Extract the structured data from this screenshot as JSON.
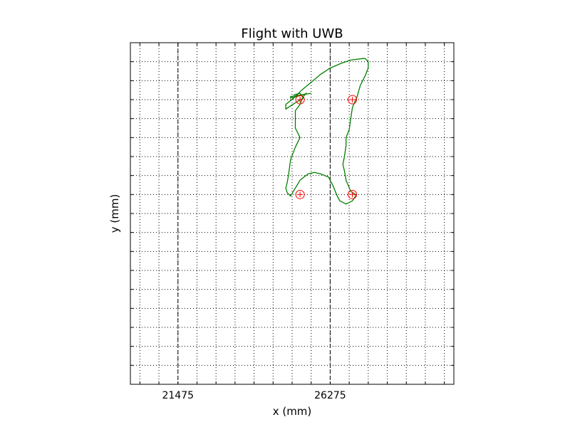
{
  "chart_data": {
    "type": "line",
    "title": "Flight with UWB",
    "xlabel": "x (mm)",
    "ylabel": "y (mm)",
    "xlim": [
      19975,
      30175
    ],
    "ylim": [
      -6000,
      4800
    ],
    "grid": true,
    "x_ticks": [
      {
        "value": 21475,
        "label": "21475"
      },
      {
        "value": 26275,
        "label": "26275"
      }
    ],
    "x_minor_grid": [
      20275,
      20875,
      21475,
      22075,
      22675,
      23275,
      23875,
      24475,
      25075,
      25675,
      26275,
      26875,
      27475,
      28075,
      28675,
      29275,
      29875
    ],
    "y_minor_grid": [
      4800,
      4200,
      3600,
      3000,
      2400,
      1800,
      1200,
      600,
      0,
      -600,
      -1200,
      -1800,
      -2400,
      -3000,
      -3600,
      -4200,
      -4800,
      -5400
    ],
    "reference_lines": [
      {
        "axis": "x",
        "value": 21475,
        "style": "dashed",
        "color": "#000000"
      },
      {
        "axis": "x",
        "value": 26275,
        "style": "dashed",
        "color": "#000000"
      }
    ],
    "markers": {
      "color": "#ff0000",
      "points": [
        {
          "x": 25325,
          "y": 3000
        },
        {
          "x": 26975,
          "y": 3000
        },
        {
          "x": 25325,
          "y": 0
        },
        {
          "x": 26975,
          "y": 0
        }
      ]
    },
    "series": [
      {
        "color": "#008000",
        "x": [
          25675,
          25025,
          25025,
          25425,
          25525,
          25425,
          25325,
          25175,
          25175,
          25175,
          25325,
          25175,
          25025,
          24975,
          24925,
          24875,
          24925,
          25025,
          25325,
          25575,
          25775,
          25975,
          26225,
          26375,
          26475,
          26575,
          26775,
          26975,
          27075,
          27075,
          26925,
          26775,
          26725,
          26675,
          26725,
          26775,
          26775,
          26875,
          26925,
          26975,
          27125,
          27225,
          27375,
          27475,
          27475,
          27375,
          27325,
          26925,
          26625,
          26275,
          25975,
          25675,
          25375,
          25125,
          24875,
          24875,
          25175,
          25425,
          25325,
          25125
        ],
        "y": [
          3200,
          3100,
          3050,
          3150,
          3200,
          3100,
          2850,
          2650,
          2400,
          2100,
          1800,
          1500,
          1100,
          700,
          400,
          200,
          50,
          -50,
          450,
          650,
          700,
          650,
          550,
          250,
          0,
          -200,
          -300,
          -200,
          -50,
          0,
          100,
          450,
          750,
          950,
          1200,
          1550,
          1800,
          2050,
          2400,
          2750,
          3100,
          3450,
          3750,
          4000,
          4200,
          4300,
          4300,
          4250,
          4150,
          4000,
          3800,
          3550,
          3300,
          3050,
          2850,
          2700,
          2900,
          3050,
          3200,
          3150
        ]
      }
    ]
  }
}
